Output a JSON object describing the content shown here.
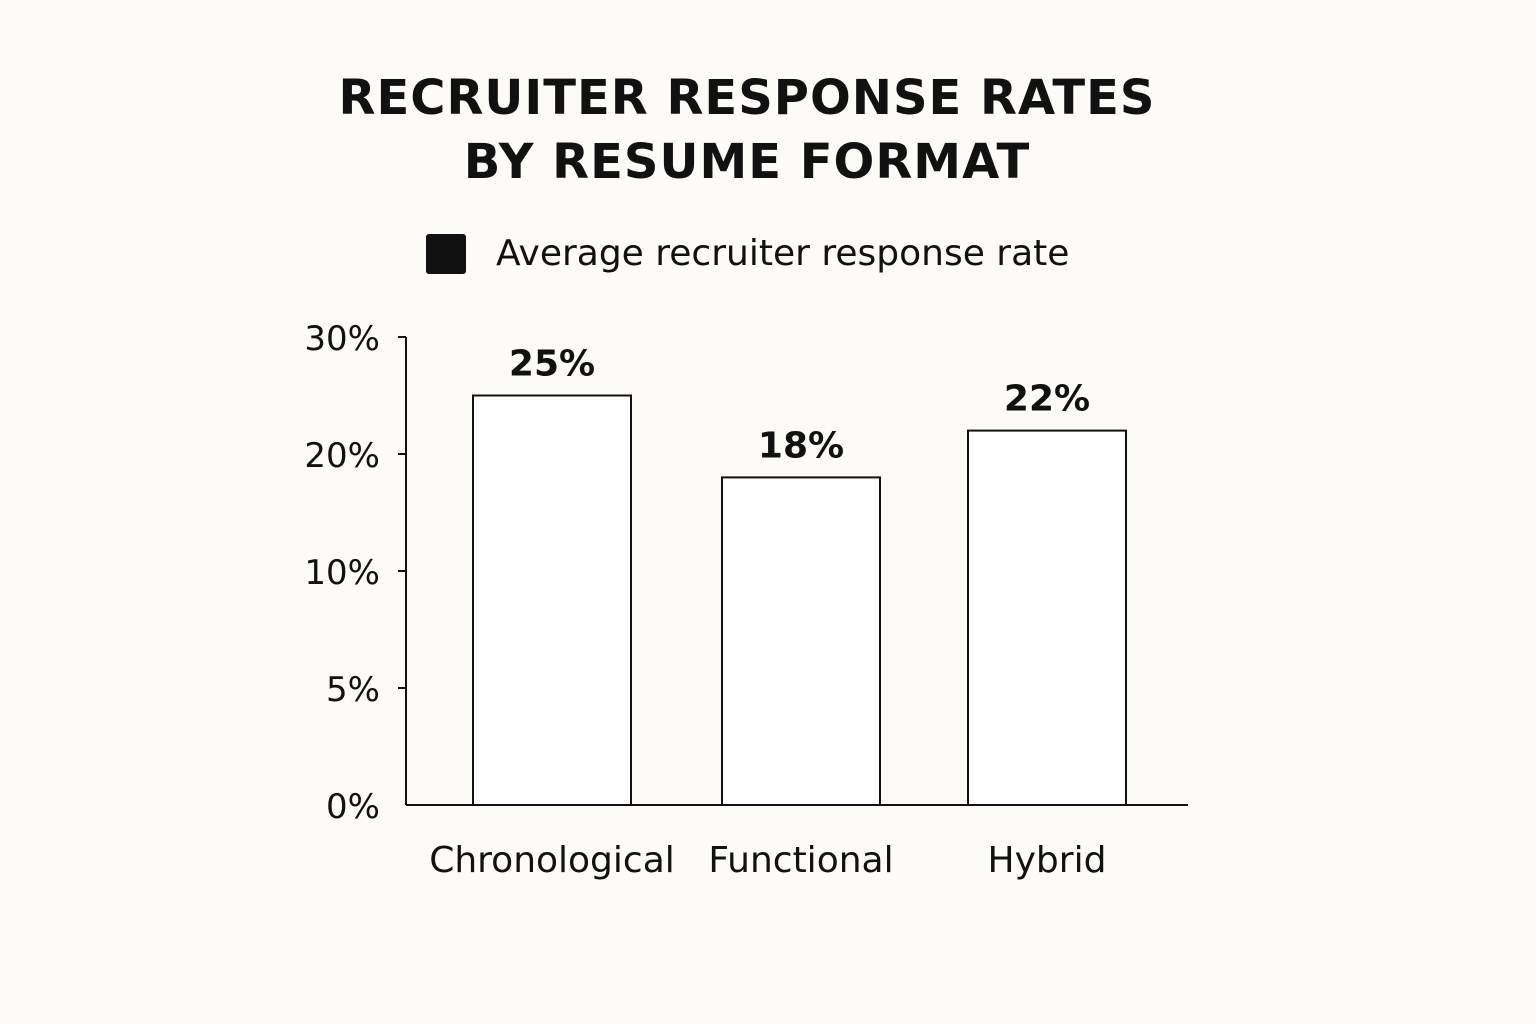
{
  "chart_data": {
    "type": "bar",
    "title_lines": [
      "RECRUITER RESPONSE RATES",
      "BY RESUME FORMAT"
    ],
    "legend": "Average recruiter response rate",
    "legend_position": "top",
    "categories": [
      "Chronological",
      "Functional",
      "Hybrid"
    ],
    "series": [
      {
        "name": "Average recruiter response rate",
        "values": [
          25,
          18,
          22
        ],
        "labels": [
          "25%",
          "18%",
          "22%"
        ]
      }
    ],
    "y_ticks": [
      {
        "value": 0,
        "label": "0%"
      },
      {
        "value": 5,
        "label": "5%"
      },
      {
        "value": 10,
        "label": "10%"
      },
      {
        "value": 20,
        "label": "20%"
      },
      {
        "value": 30,
        "label": "30%"
      }
    ],
    "ylim": [
      0,
      30
    ],
    "grid": false,
    "bar_fill": "#ffffff",
    "bar_stroke": "#111111"
  }
}
